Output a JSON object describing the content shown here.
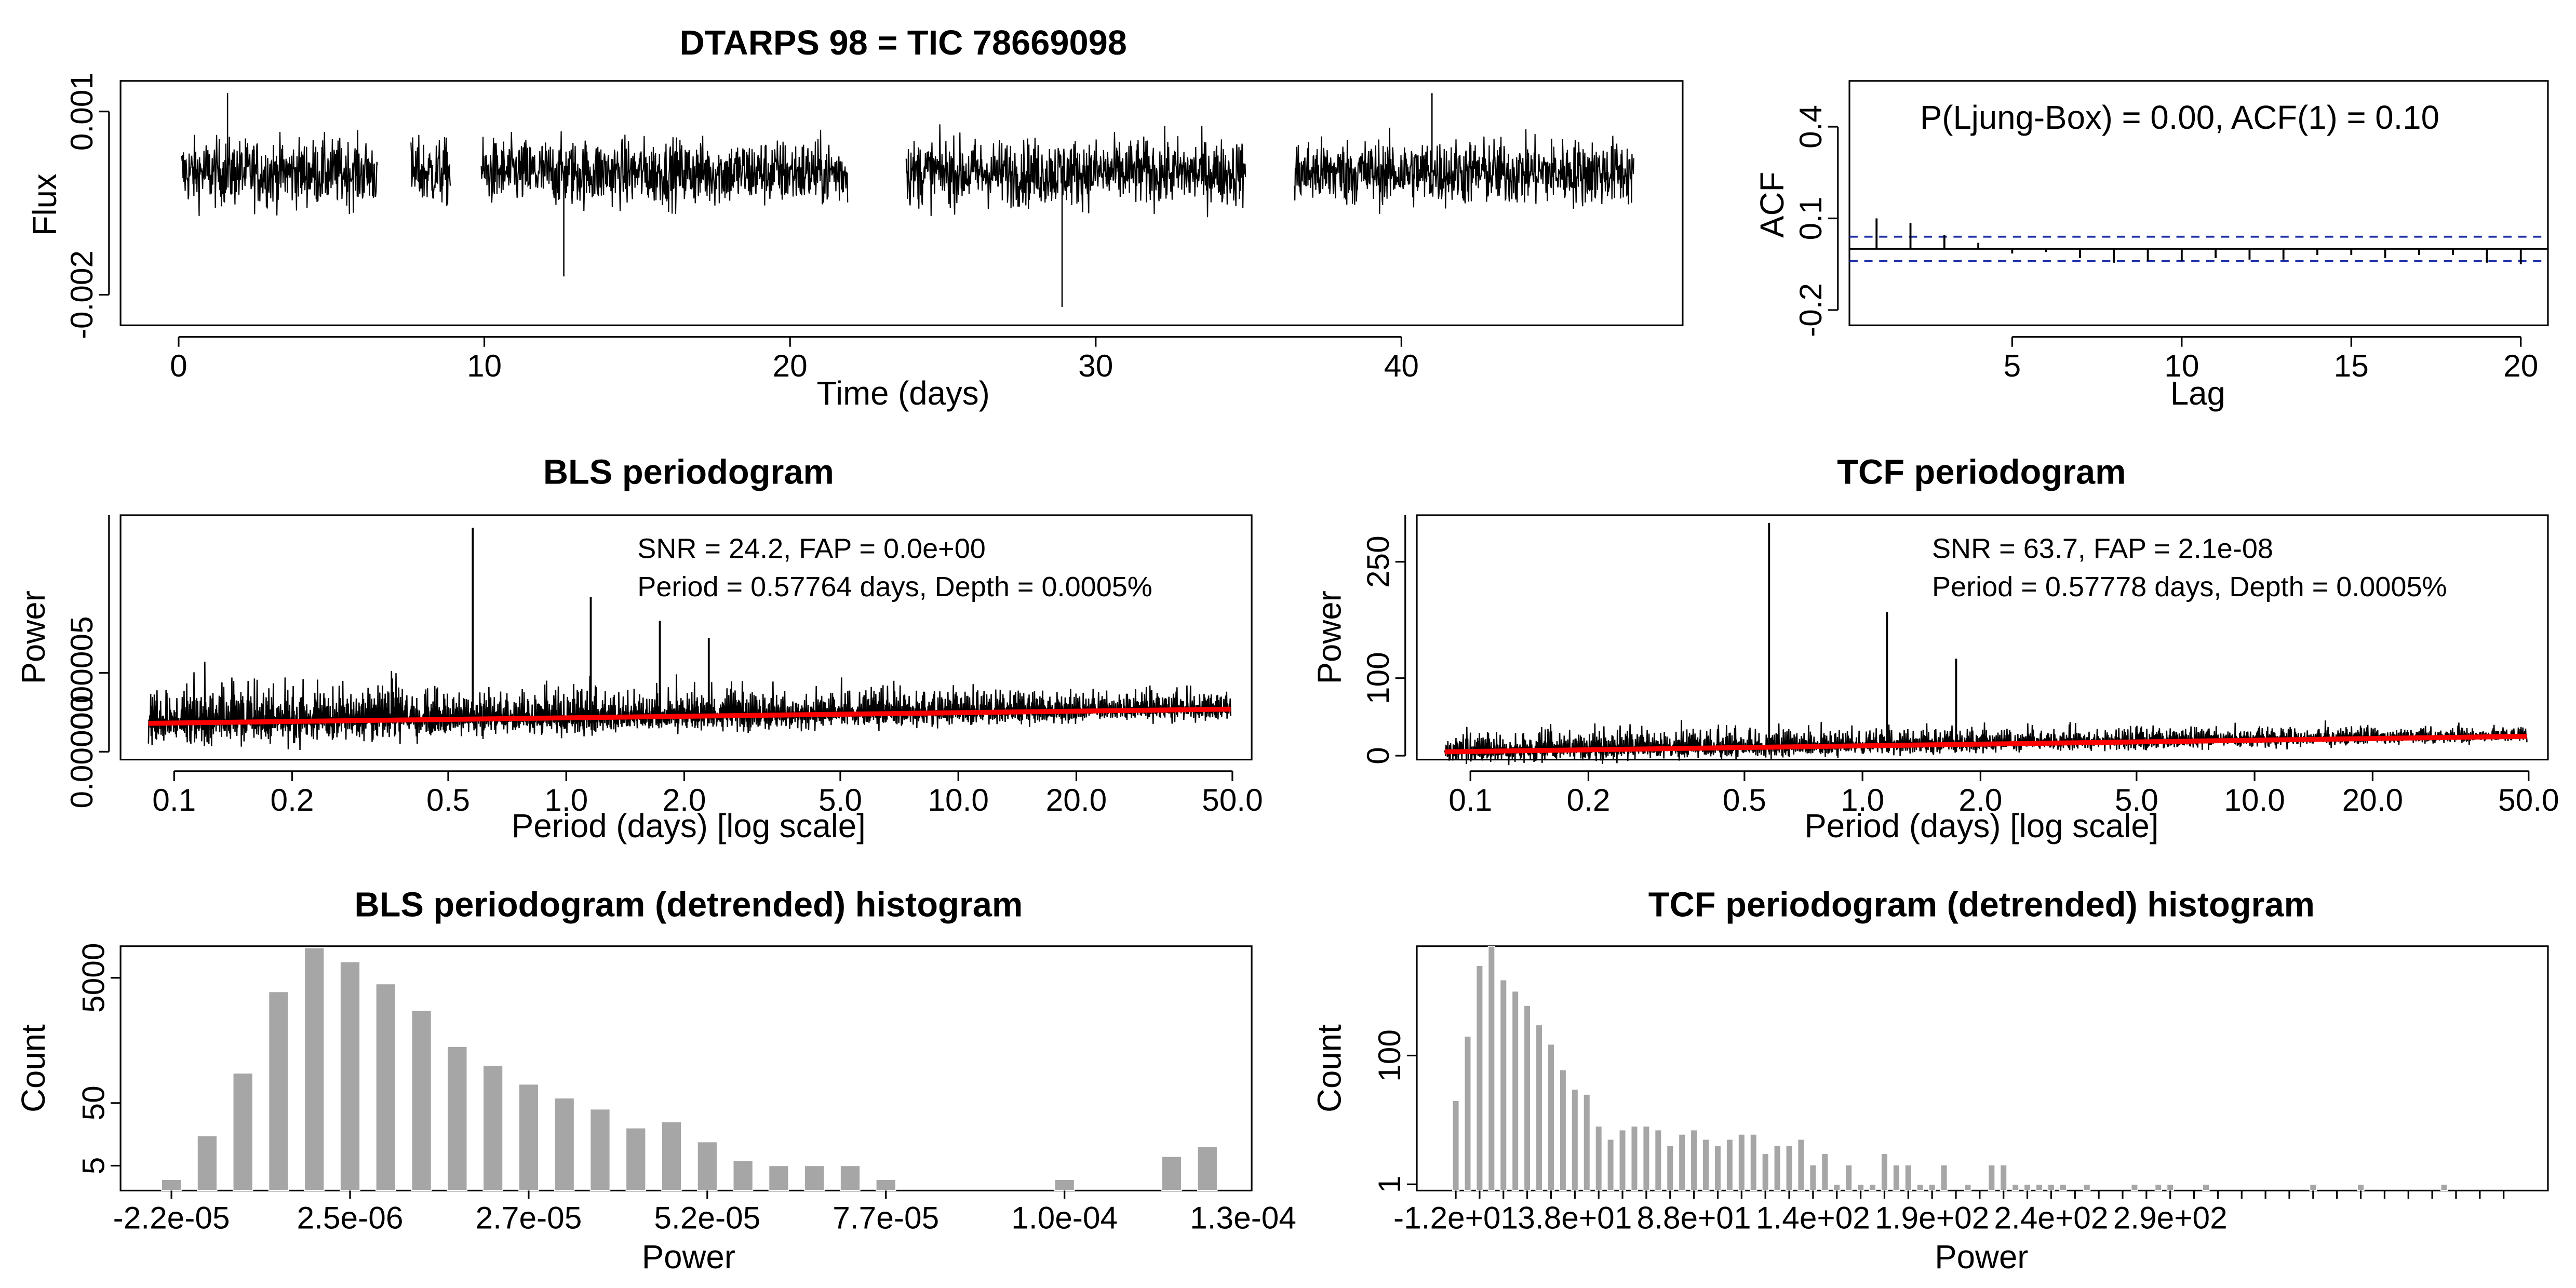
{
  "figure": {
    "title": "DTARPS 98 = TIC 78669098",
    "colors": {
      "axis": "#000000",
      "series": "#000000",
      "trend": "#ff0000",
      "confidence": "#1f2fa8",
      "bars": "#a6a6a6"
    }
  },
  "chart_data": [
    {
      "id": "lightcurve",
      "type": "line",
      "title": "DTARPS 98 = TIC 78669098",
      "xlabel": "Time (days)",
      "ylabel": "Flux",
      "xlim": [
        -1.9,
        49.2
      ],
      "ylim": [
        -0.0025,
        0.0015
      ],
      "xticks": [
        0,
        10,
        20,
        30,
        40
      ],
      "xtick_labels": [
        "0",
        "10",
        "20",
        "30",
        "40"
      ],
      "yticks": [
        -0.002,
        0.001
      ],
      "ytick_labels": [
        "-0.002",
        "0.001"
      ],
      "segments": [
        [
          0.1,
          6.5
        ],
        [
          7.6,
          8.9
        ],
        [
          9.9,
          21.9
        ],
        [
          23.8,
          34.9
        ],
        [
          36.5,
          47.6
        ]
      ],
      "amplitude": 0.0006,
      "extremes": [
        {
          "x": 1.6,
          "y": 0.0013
        },
        {
          "x": 12.6,
          "y": -0.0017
        },
        {
          "x": 28.9,
          "y": -0.0022
        },
        {
          "x": 41.0,
          "y": 0.0013
        }
      ]
    },
    {
      "id": "acf",
      "type": "bar",
      "xlabel": "Lag",
      "ylabel": "ACF",
      "annotation": "P(Ljung-Box) = 0.00, ACF(1) = 0.10",
      "xlim": [
        0.2,
        20.8
      ],
      "ylim": [
        -0.25,
        0.55
      ],
      "xticks": [
        5,
        10,
        15,
        20
      ],
      "xtick_labels": [
        "5",
        "10",
        "15",
        "20"
      ],
      "yticks": [
        -0.2,
        0.1,
        0.4
      ],
      "ytick_labels": [
        "-0.2",
        "0.1",
        "0.4"
      ],
      "lags": [
        1,
        2,
        3,
        4,
        5,
        6,
        7,
        8,
        9,
        10,
        11,
        12,
        13,
        14,
        15,
        16,
        17,
        18,
        19,
        20
      ],
      "values": [
        0.1,
        0.085,
        0.045,
        0.02,
        -0.015,
        -0.01,
        -0.03,
        -0.045,
        -0.04,
        -0.04,
        -0.03,
        -0.035,
        -0.035,
        -0.02,
        -0.02,
        -0.03,
        -0.02,
        -0.02,
        -0.045,
        -0.05
      ],
      "confidence": [
        -0.04,
        0.04
      ]
    },
    {
      "id": "bls",
      "type": "line",
      "title": "BLS periodogram",
      "xlabel": "Period (days) [log scale]",
      "ylabel": "Power",
      "annotation_lines": [
        "SNR = 24.2, FAP = 0.0e+00",
        "Period = 0.57764 days, Depth = 0.0005%"
      ],
      "xlim": [
        0.073,
        56
      ],
      "ylim": [
        -5e-06,
        0.00015
      ],
      "log_x": true,
      "xticks": [
        0.1,
        0.2,
        0.5,
        1.0,
        2.0,
        5.0,
        10.0,
        20.0,
        50.0
      ],
      "xtick_labels": [
        "0.1",
        "0.2",
        "0.5",
        "1.0",
        "2.0",
        "5.0",
        "10.0",
        "20.0",
        "50.0"
      ],
      "yticks": [
        0.0,
        5e-05
      ],
      "ytick_labels": [
        "0.00000",
        "0.00005"
      ],
      "x_range": [
        0.086,
        49.5
      ],
      "baseline": [
        1.8e-05,
        2.7e-05
      ],
      "noise": 1.2e-05,
      "peaks": [
        {
          "x": 0.57764,
          "y": 0.000142
        },
        {
          "x": 1.155,
          "y": 9.8e-05
        },
        {
          "x": 1.733,
          "y": 8.3e-05
        },
        {
          "x": 2.31,
          "y": 7.2e-05
        }
      ]
    },
    {
      "id": "tcf",
      "type": "line",
      "title": "TCF periodogram",
      "xlabel": "Period (days) [log scale]",
      "ylabel": "Power",
      "annotation_lines": [
        "SNR = 63.7, FAP = 2.1e-08",
        "Period = 0.57778 days, Depth = 0.0005%"
      ],
      "xlim": [
        0.073,
        56
      ],
      "ylim": [
        -5,
        310
      ],
      "log_x": true,
      "xticks": [
        0.1,
        0.2,
        0.5,
        1.0,
        2.0,
        5.0,
        10.0,
        20.0,
        50.0
      ],
      "xtick_labels": [
        "0.1",
        "0.2",
        "0.5",
        "1.0",
        "2.0",
        "5.0",
        "10.0",
        "20.0",
        "50.0"
      ],
      "yticks": [
        0,
        100,
        250
      ],
      "ytick_labels": [
        "0",
        "100",
        "250"
      ],
      "x_range": [
        0.086,
        49.5
      ],
      "baseline": [
        5,
        25
      ],
      "noise": 14,
      "peaks": [
        {
          "x": 0.57778,
          "y": 300
        },
        {
          "x": 1.155,
          "y": 185
        },
        {
          "x": 1.733,
          "y": 125
        }
      ]
    },
    {
      "id": "bls_hist",
      "type": "bar",
      "title": "BLS periodogram (detrended) histogram",
      "xlabel": "Power",
      "ylabel": "Count",
      "log_y": true,
      "ylim": [
        2,
        16000
      ],
      "xtick_labels": [
        "-2.2e-05",
        "2.5e-06",
        "2.7e-05",
        "5.2e-05",
        "7.7e-05",
        "1.0e-04",
        "1.3e-04"
      ],
      "tick_every": 5,
      "label_every": 5,
      "values": [
        3,
        15,
        150,
        3000,
        15000,
        9000,
        4000,
        1500,
        400,
        200,
        100,
        60,
        40,
        20,
        25,
        12,
        6,
        5,
        5,
        5,
        3,
        2,
        2,
        2,
        2,
        3,
        2,
        2,
        7,
        10
      ]
    },
    {
      "id": "tcf_hist",
      "type": "bar",
      "title": "TCF periodogram (detrended) histogram",
      "xlabel": "Power",
      "ylabel": "Count",
      "log_y": true,
      "ylim": [
        0.8,
        5000
      ],
      "xtick_labels": [
        "-1.2e+01",
        "3.8e+01",
        "8.8e+01",
        "1.4e+02",
        "1.9e+02",
        "2.4e+02",
        "2.9e+02"
      ],
      "tick_every": 2,
      "label_every": 10,
      "values": [
        20,
        200,
        2500,
        5000,
        1500,
        1000,
        600,
        300,
        150,
        60,
        30,
        25,
        8,
        5,
        7,
        8,
        8,
        7,
        4,
        6,
        7,
        5,
        4,
        5,
        6,
        6,
        3,
        4,
        4,
        5,
        2,
        3,
        1,
        2,
        1,
        1,
        3,
        2,
        2,
        1,
        1,
        2,
        0,
        1,
        0,
        2,
        2,
        1,
        1,
        1,
        1,
        1,
        0,
        1,
        0,
        0,
        0,
        1,
        0,
        1,
        1,
        0,
        0,
        1,
        0,
        0,
        0,
        0,
        0,
        0,
        0,
        0,
        1,
        0,
        0,
        0,
        1,
        0,
        0,
        0,
        0,
        0,
        0,
        1,
        0,
        0,
        0,
        0,
        0,
        0
      ]
    }
  ]
}
